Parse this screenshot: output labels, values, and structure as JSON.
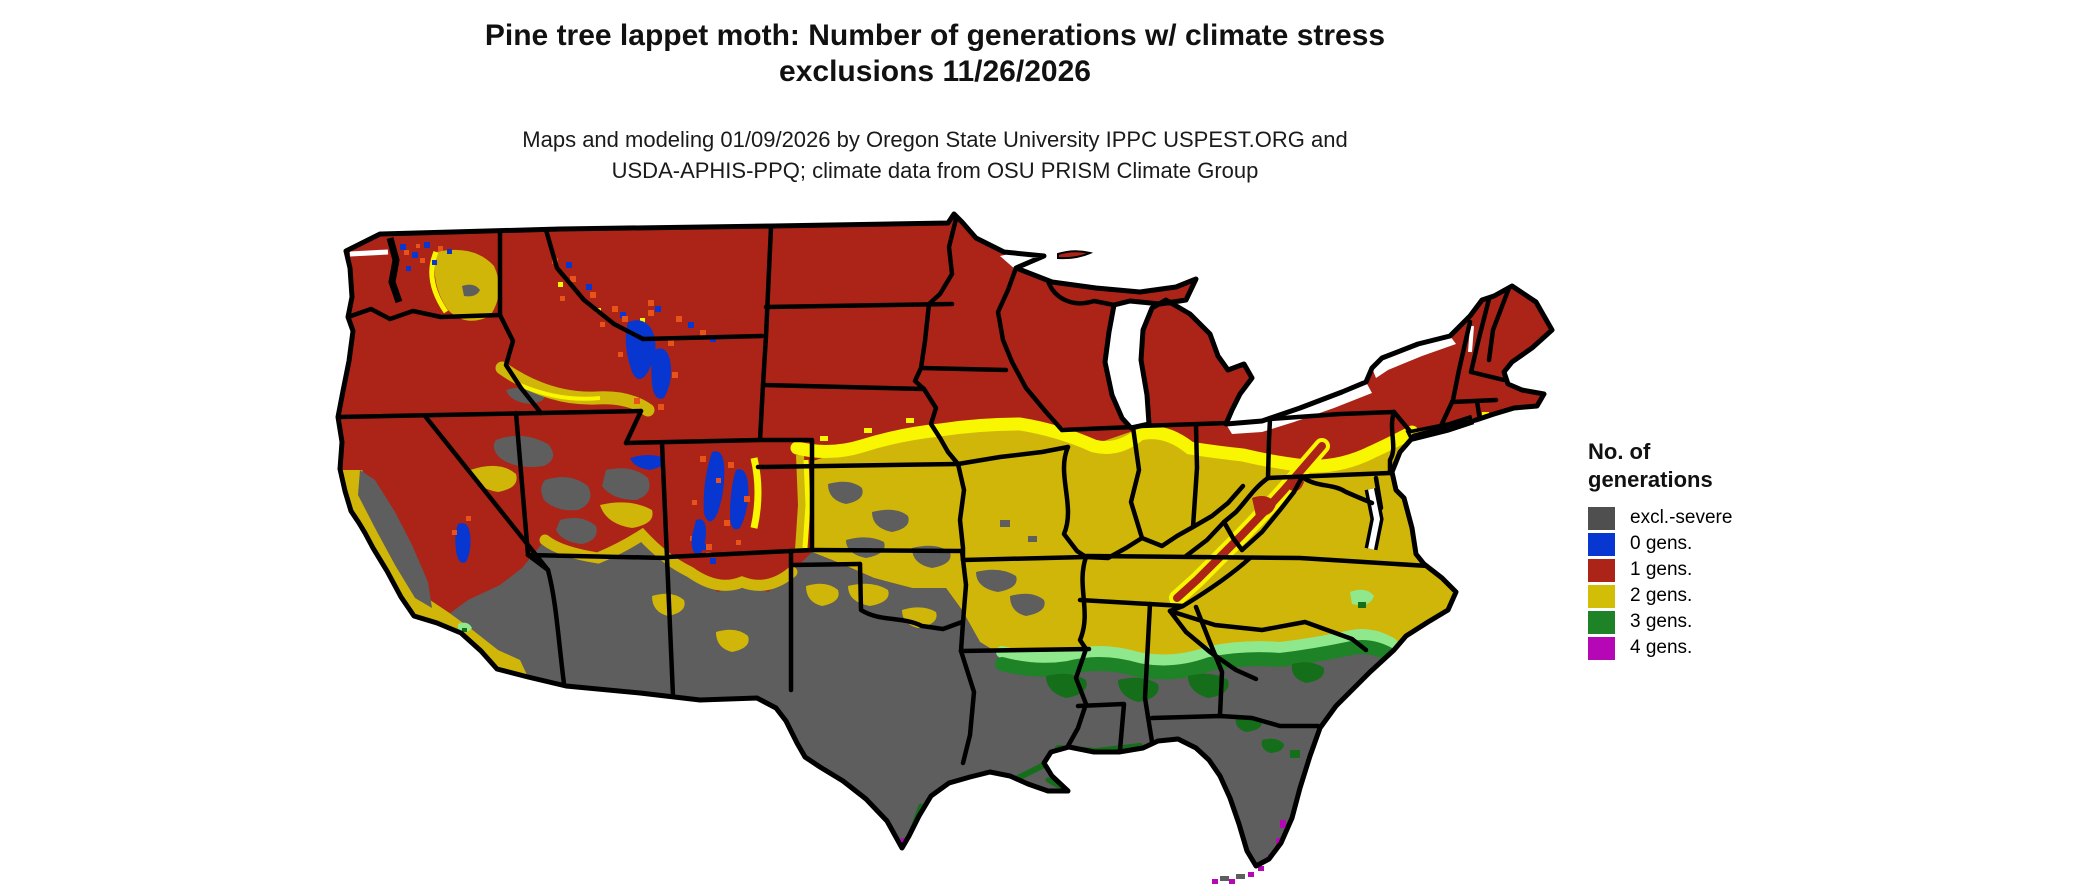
{
  "title": {
    "line1": "Pine tree lappet moth: Number of generations w/ climate stress",
    "line2": "exclusions 11/26/2026"
  },
  "subtitle": {
    "line1": "Maps and modeling 01/09/2026 by Oregon State University IPPC USPEST.ORG and",
    "line2": "USDA-APHIS-PPQ; climate data from OSU PRISM Climate Group"
  },
  "legend": {
    "title_line1": "No. of",
    "title_line2": "generations",
    "items": [
      {
        "label": "excl.-severe",
        "color": "#4F4F4F"
      },
      {
        "label": "0 gens.",
        "color": "#0836D1"
      },
      {
        "label": "1 gens.",
        "color": "#AB2417"
      },
      {
        "label": "2 gens.",
        "color": "#D2BE06"
      },
      {
        "label": "3 gens.",
        "color": "#1E8326"
      },
      {
        "label": "4 gens.",
        "color": "#B607B6"
      }
    ]
  },
  "map": {
    "region": "Contiguous United States",
    "kind": "choropleth raster of model generations with climate stress exclusions",
    "colors": {
      "excluded_gray": "#5E5E5E",
      "zero_gens_blue": "#0836D1",
      "one_gen_red": "#AB2417",
      "two_gens_gold": "#CFB608",
      "three_gens_green": "#1E8326",
      "coastal_green_dark": "#156E19",
      "transition_yellow": "#F8F600",
      "transition_light_green": "#8FE98C",
      "transition_orange": "#E8531A",
      "four_gens_magenta": "#B607B6",
      "state_border": "#000000",
      "water": "#FFFFFF"
    }
  }
}
